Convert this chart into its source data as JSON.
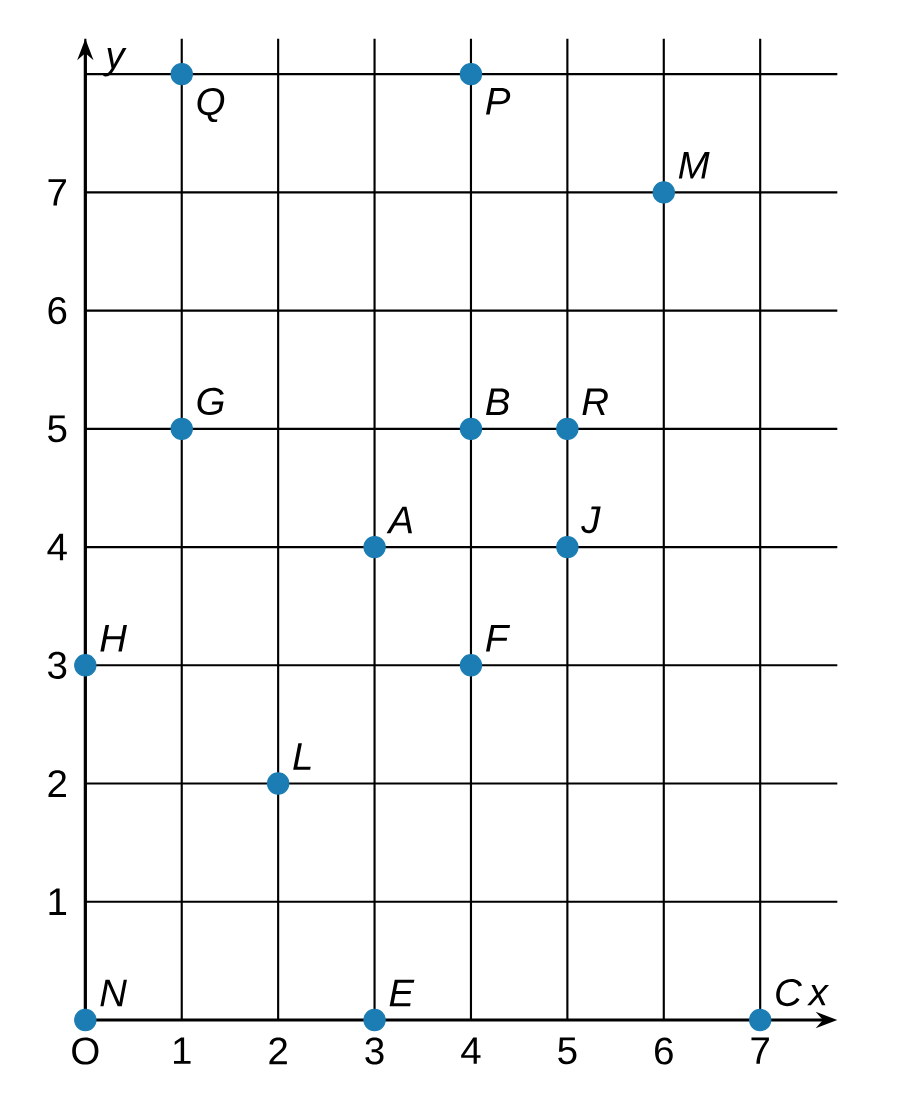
{
  "chart_data": {
    "type": "scatter",
    "xlabel": "x",
    "ylabel": "y",
    "color": "#1b7db3",
    "marker": "circle",
    "grid": true,
    "xlim": [
      0,
      7.8
    ],
    "ylim": [
      0,
      8.3
    ],
    "xticks": [
      {
        "value": 0,
        "label": "O"
      },
      1,
      2,
      3,
      4,
      5,
      6,
      7
    ],
    "yticks": [
      1,
      2,
      3,
      4,
      5,
      6,
      7,
      {
        "value": 8,
        "label": null
      }
    ],
    "x": [
      1,
      4,
      6,
      4,
      5,
      1,
      3,
      5,
      0,
      4,
      2,
      0,
      3,
      7
    ],
    "values": [
      8,
      8,
      7,
      5,
      5,
      5,
      4,
      4,
      3,
      3,
      2,
      0,
      0,
      0
    ],
    "annotations": [
      {
        "text": "Q",
        "x": 1,
        "y": 8
      },
      {
        "text": "P",
        "x": 4,
        "y": 8
      },
      {
        "text": "M",
        "x": 6,
        "y": 7
      },
      {
        "text": "B",
        "x": 4,
        "y": 5
      },
      {
        "text": "R",
        "x": 5,
        "y": 5
      },
      {
        "text": "G",
        "x": 1,
        "y": 5
      },
      {
        "text": "A",
        "x": 3,
        "y": 4
      },
      {
        "text": "J",
        "x": 5,
        "y": 4
      },
      {
        "text": "H",
        "x": 0,
        "y": 3
      },
      {
        "text": "F",
        "x": 4,
        "y": 3
      },
      {
        "text": "L",
        "x": 2,
        "y": 2
      },
      {
        "text": "N",
        "x": 0,
        "y": 0
      },
      {
        "text": "E",
        "x": 3,
        "y": 0
      },
      {
        "text": "C",
        "x": 7,
        "y": 0
      }
    ]
  }
}
